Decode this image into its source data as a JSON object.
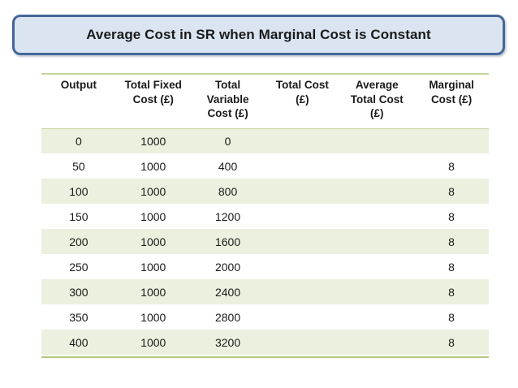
{
  "slide": {
    "title": "Average Cost in SR when Marginal Cost is Constant"
  },
  "colors": {
    "title_fill": "#dbe5f1",
    "title_border": "#44679b",
    "title_text": "#1a1a1a",
    "table_band_fill": "#ebf1de",
    "table_top_border": "#c3d69b",
    "table_bottom_border": "#b2c87f",
    "body_text": "#1a1a1a"
  },
  "table": {
    "columns": [
      "Output",
      "Total Fixed\nCost (£)",
      "Total\nVariable\nCost (£)",
      "Total Cost\n(£)",
      "Average\nTotal Cost\n(£)",
      "Marginal\nCost (£)"
    ],
    "rows": [
      [
        "0",
        "1000",
        "0",
        "",
        "",
        ""
      ],
      [
        "50",
        "1000",
        "400",
        "",
        "",
        "8"
      ],
      [
        "100",
        "1000",
        "800",
        "",
        "",
        "8"
      ],
      [
        "150",
        "1000",
        "1200",
        "",
        "",
        "8"
      ],
      [
        "200",
        "1000",
        "1600",
        "",
        "",
        "8"
      ],
      [
        "250",
        "1000",
        "2000",
        "",
        "",
        "8"
      ],
      [
        "300",
        "1000",
        "2400",
        "",
        "",
        "8"
      ],
      [
        "350",
        "1000",
        "2800",
        "",
        "",
        "8"
      ],
      [
        "400",
        "1000",
        "3200",
        "",
        "",
        "8"
      ]
    ]
  }
}
